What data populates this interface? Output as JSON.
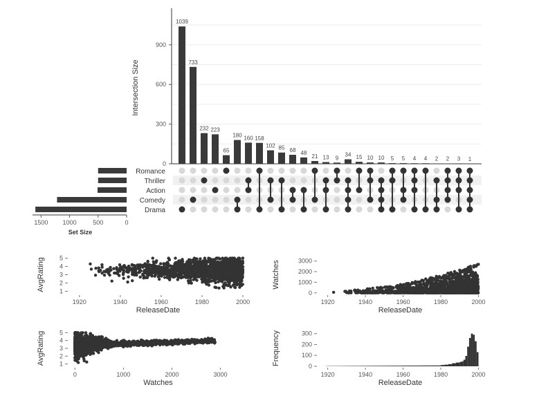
{
  "chart_data": [
    {
      "type": "upset",
      "ylabel": "Intersection Size",
      "yticks": [
        0,
        300,
        600,
        900
      ],
      "ylim": [
        0,
        1150
      ],
      "sets": [
        "Romance",
        "Thriller",
        "Action",
        "Comedy",
        "Drama"
      ],
      "set_sizes": [
        500,
        500,
        510,
        1220,
        1600
      ],
      "set_size_label": "Set Size",
      "set_size_ticks": [
        1500,
        1000,
        500,
        0
      ],
      "set_size_max": 1650,
      "intersections": [
        {
          "size": 1039,
          "members": [
            "Drama"
          ]
        },
        {
          "size": 733,
          "members": [
            "Comedy"
          ]
        },
        {
          "size": 232,
          "members": [
            "Thriller"
          ]
        },
        {
          "size": 223,
          "members": [
            "Action"
          ]
        },
        {
          "size": 65,
          "members": [
            "Romance"
          ]
        },
        {
          "size": 180,
          "members": [
            "Comedy",
            "Drama"
          ]
        },
        {
          "size": 160,
          "members": [
            "Action",
            "Thriller"
          ]
        },
        {
          "size": 158,
          "members": [
            "Romance",
            "Drama"
          ]
        },
        {
          "size": 102,
          "members": [
            "Thriller",
            "Comedy"
          ]
        },
        {
          "size": 85,
          "members": [
            "Thriller",
            "Drama"
          ]
        },
        {
          "size": 68,
          "members": [
            "Action",
            "Comedy"
          ]
        },
        {
          "size": 48,
          "members": [
            "Action",
            "Drama"
          ]
        },
        {
          "size": 21,
          "members": [
            "Romance",
            "Comedy"
          ]
        },
        {
          "size": 13,
          "members": [
            "Thriller",
            "Action",
            "Drama"
          ]
        },
        {
          "size": 9,
          "members": [
            "Romance",
            "Thriller"
          ]
        },
        {
          "size": 34,
          "members": [
            "Thriller",
            "Action",
            "Comedy",
            "Drama"
          ]
        },
        {
          "size": 15,
          "members": [
            "Romance",
            "Action"
          ]
        },
        {
          "size": 10,
          "members": [
            "Romance",
            "Thriller",
            "Comedy"
          ]
        },
        {
          "size": 10,
          "members": [
            "Thriller",
            "Action",
            "Comedy",
            "Drama"
          ]
        },
        {
          "size": 5,
          "members": [
            "Romance",
            "Thriller",
            "Drama"
          ]
        },
        {
          "size": 5,
          "members": [
            "Romance",
            "Action",
            "Comedy"
          ]
        },
        {
          "size": 4,
          "members": [
            "Romance",
            "Thriller",
            "Action",
            "Drama"
          ]
        },
        {
          "size": 4,
          "members": [
            "Romance",
            "Drama"
          ]
        },
        {
          "size": 2,
          "members": [
            "Thriller",
            "Comedy",
            "Drama"
          ]
        },
        {
          "size": 2,
          "members": [
            "Romance",
            "Thriller",
            "Action",
            "Comedy"
          ]
        },
        {
          "size": 3,
          "members": [
            "Romance",
            "Thriller",
            "Action",
            "Drama"
          ]
        },
        {
          "size": 1,
          "members": [
            "Romance",
            "Thriller",
            "Action",
            "Comedy",
            "Drama"
          ]
        }
      ]
    },
    {
      "type": "scatter",
      "xlabel": "ReleaseDate",
      "ylabel": "AvgRating",
      "xlim": [
        1915,
        2002
      ],
      "ylim": [
        0.7,
        5.3
      ],
      "xticks": [
        1920,
        1940,
        1960,
        1980,
        2000
      ],
      "yticks": [
        1,
        2,
        3,
        4,
        5
      ],
      "x_range": [
        1919,
        2000
      ],
      "y_range": [
        1,
        5
      ]
    },
    {
      "type": "scatter",
      "xlabel": "ReleaseDate",
      "ylabel": "Watches",
      "xlim": [
        1915,
        2002
      ],
      "ylim": [
        -80,
        3500
      ],
      "xticks": [
        1920,
        1940,
        1960,
        1980,
        2000
      ],
      "yticks": [
        0,
        1000,
        2000,
        3000
      ],
      "x_range": [
        1919,
        2000
      ],
      "y_range": [
        0,
        3400
      ]
    },
    {
      "type": "scatter",
      "xlabel": "Watches",
      "ylabel": "AvgRating",
      "xlim": [
        -120,
        3550
      ],
      "ylim": [
        0.7,
        5.3
      ],
      "xticks": [
        0,
        1000,
        2000,
        3000
      ],
      "yticks": [
        1,
        2,
        3,
        4,
        5
      ],
      "x_range": [
        0,
        3400
      ],
      "y_range": [
        1,
        5
      ]
    },
    {
      "type": "bar",
      "xlabel": "ReleaseDate",
      "ylabel": "Frequency",
      "xlim": [
        1915,
        2002
      ],
      "ylim": [
        0,
        330
      ],
      "xticks": [
        1920,
        1940,
        1960,
        1980,
        2000
      ],
      "yticks": [
        0,
        100,
        200,
        300
      ],
      "x": [
        1980,
        1982,
        1984,
        1986,
        1988,
        1990,
        1991,
        1992,
        1993,
        1994,
        1995,
        1996,
        1997,
        1998,
        1999
      ],
      "values": [
        12,
        15,
        20,
        28,
        34,
        40,
        45,
        60,
        95,
        180,
        260,
        300,
        290,
        230,
        130
      ]
    }
  ]
}
